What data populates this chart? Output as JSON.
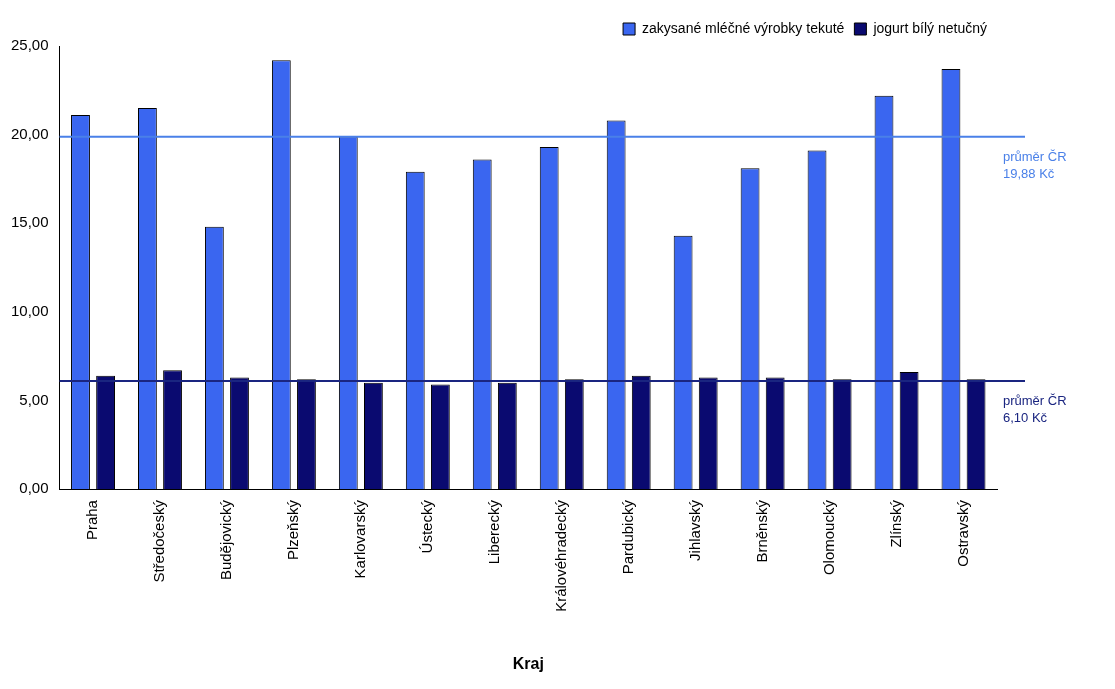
{
  "chart_data": {
    "type": "bar",
    "xlabel": "Kraj",
    "categories": [
      "Praha",
      "Středočeský",
      "Budějovický",
      "Plzeňský",
      "Karlovarský",
      "Ústecký",
      "Liberecký",
      "Královéhradecký",
      "Pardubický",
      "Jihlavský",
      "Brněnský",
      "Olomoucký",
      "Zlínský",
      "Ostravský"
    ],
    "series": [
      {
        "name": "zakysané mléčné výrobky tekuté",
        "color": "#3a66f0",
        "values": [
          21.1,
          21.5,
          14.8,
          24.2,
          19.9,
          17.9,
          18.6,
          19.3,
          20.8,
          14.3,
          18.1,
          19.1,
          22.2,
          23.7
        ]
      },
      {
        "name": "jogurt bílý netučný",
        "color": "#0a0a70",
        "values": [
          6.4,
          6.7,
          6.3,
          6.2,
          6.0,
          5.9,
          6.0,
          6.2,
          6.4,
          6.3,
          6.3,
          6.2,
          6.6,
          6.2
        ]
      }
    ],
    "ylim": [
      0,
      25
    ],
    "yticks": [
      {
        "value": 0,
        "label": "0,00"
      },
      {
        "value": 5,
        "label": "5,00"
      },
      {
        "value": 10,
        "label": "10,00"
      },
      {
        "value": 15,
        "label": "15,00"
      },
      {
        "value": 20,
        "label": "20,00"
      },
      {
        "value": 25,
        "label": "25,00"
      }
    ],
    "ref_lines": [
      {
        "axis": "y",
        "value": 19.88,
        "label": "průměr ČR\n19,88 Kč",
        "color": "#4a80e8"
      },
      {
        "axis": "y",
        "value": 6.1,
        "label": "průměr ČR\n6,10 Kč",
        "color": "#1a2580"
      }
    ],
    "grid": false,
    "legend": "top right"
  }
}
